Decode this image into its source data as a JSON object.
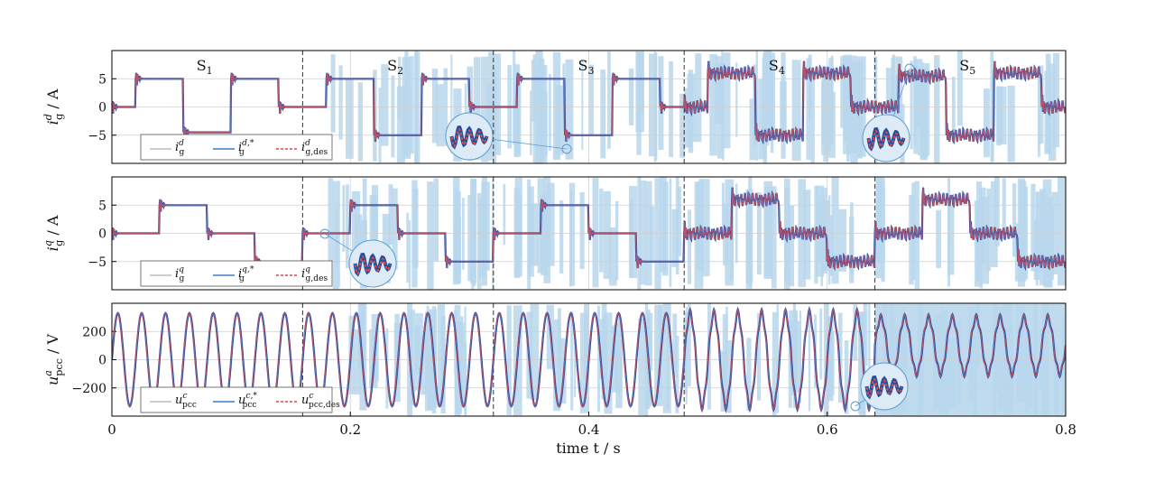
{
  "chart_data": [
    {
      "type": "line",
      "xlabel": "",
      "ylabel": {
        "base": "i",
        "sub": "g",
        "sup": "d",
        "unit": " / A"
      },
      "ylim": [
        -10,
        10
      ],
      "yticks": [
        5,
        0,
        -5
      ],
      "ytick_labels": [
        "5",
        "0",
        "−5"
      ],
      "xlim": [
        0,
        0.8
      ],
      "grid": true,
      "sections": [
        "S1",
        "S2",
        "S3",
        "S4",
        "S5"
      ],
      "section_bounds": [
        0.16,
        0.32,
        0.48,
        0.64
      ],
      "legend": {
        "placement": "bottom-left",
        "entries": [
          {
            "base": "i",
            "sub": "g",
            "sup": "d"
          },
          {
            "base": "i",
            "sub": "g",
            "sup": "d,*"
          },
          {
            "base": "i",
            "sub": "g,des",
            "sup": "d"
          }
        ]
      },
      "series": [
        {
          "shape": "steps",
          "steps": [
            [
              0,
              0
            ],
            [
              0.02,
              5
            ],
            [
              0.06,
              -4.5
            ],
            [
              0.1,
              5
            ],
            [
              0.14,
              0
            ],
            [
              0.18,
              5
            ],
            [
              0.22,
              -5
            ],
            [
              0.26,
              5
            ],
            [
              0.3,
              0
            ],
            [
              0.34,
              5
            ],
            [
              0.38,
              -5
            ],
            [
              0.42,
              5
            ],
            [
              0.46,
              0
            ],
            [
              0.48,
              0
            ],
            [
              0.5,
              6
            ],
            [
              0.54,
              -5
            ],
            [
              0.58,
              6
            ],
            [
              0.62,
              0
            ],
            [
              0.66,
              5.5
            ],
            [
              0.7,
              -5
            ],
            [
              0.74,
              6
            ],
            [
              0.78,
              0
            ],
            [
              0.8,
              0
            ]
          ],
          "ripple": 1.3,
          "ripple_from": 0.48
        }
      ]
    },
    {
      "type": "line",
      "xlabel": "",
      "ylabel": {
        "base": "i",
        "sub": "g",
        "sup": "q",
        "unit": " / A"
      },
      "ylim": [
        -10,
        10
      ],
      "yticks": [
        5,
        0,
        -5
      ],
      "ytick_labels": [
        "5",
        "0",
        "−5"
      ],
      "xlim": [
        0,
        0.8
      ],
      "grid": true,
      "section_bounds": [
        0.16,
        0.32,
        0.48,
        0.64
      ],
      "legend": {
        "placement": "bottom-left",
        "entries": [
          {
            "base": "i",
            "sub": "g",
            "sup": "q"
          },
          {
            "base": "i",
            "sub": "g",
            "sup": "q,*"
          },
          {
            "base": "i",
            "sub": "g,des",
            "sup": "q"
          }
        ]
      },
      "series": [
        {
          "shape": "steps",
          "steps": [
            [
              0,
              0
            ],
            [
              0.04,
              5
            ],
            [
              0.08,
              0
            ],
            [
              0.12,
              -5
            ],
            [
              0.16,
              0
            ],
            [
              0.2,
              5
            ],
            [
              0.24,
              0
            ],
            [
              0.28,
              -5
            ],
            [
              0.32,
              0
            ],
            [
              0.36,
              5
            ],
            [
              0.4,
              0
            ],
            [
              0.44,
              -5
            ],
            [
              0.48,
              0
            ],
            [
              0.52,
              6
            ],
            [
              0.56,
              0
            ],
            [
              0.6,
              -5
            ],
            [
              0.64,
              0
            ],
            [
              0.68,
              6
            ],
            [
              0.72,
              0
            ],
            [
              0.76,
              -5
            ],
            [
              0.8,
              -5
            ]
          ],
          "ripple": 1.3,
          "ripple_from": 0.48
        }
      ]
    },
    {
      "type": "line",
      "xlabel": "time t / s",
      "ylabel": {
        "base": "u",
        "sub": "pcc",
        "sup": "a",
        "unit": " / V"
      },
      "ylim": [
        -400,
        400
      ],
      "yticks": [
        200,
        0,
        -200
      ],
      "ytick_labels": [
        "200",
        "0",
        "−200"
      ],
      "xlim": [
        0,
        0.8
      ],
      "xticks": [
        0,
        0.2,
        0.4,
        0.6,
        0.8
      ],
      "xtick_labels": [
        "0",
        "0.2",
        "0.4",
        "0.6",
        "0.8"
      ],
      "grid": true,
      "section_bounds": [
        0.16,
        0.32,
        0.48,
        0.64
      ],
      "legend": {
        "placement": "bottom-left",
        "entries": [
          {
            "base": "u",
            "sub": "pcc",
            "sup": "c"
          },
          {
            "base": "u",
            "sub": "pcc",
            "sup": "c,*"
          },
          {
            "base": "u",
            "sub": "pcc,des",
            "sup": "c"
          }
        ]
      },
      "series": [
        {
          "shape": "sine",
          "frequency_hz": 50,
          "amplitude": 330,
          "amplitude_after_0_64": 200,
          "offset_after_0_64": 100
        }
      ]
    }
  ]
}
